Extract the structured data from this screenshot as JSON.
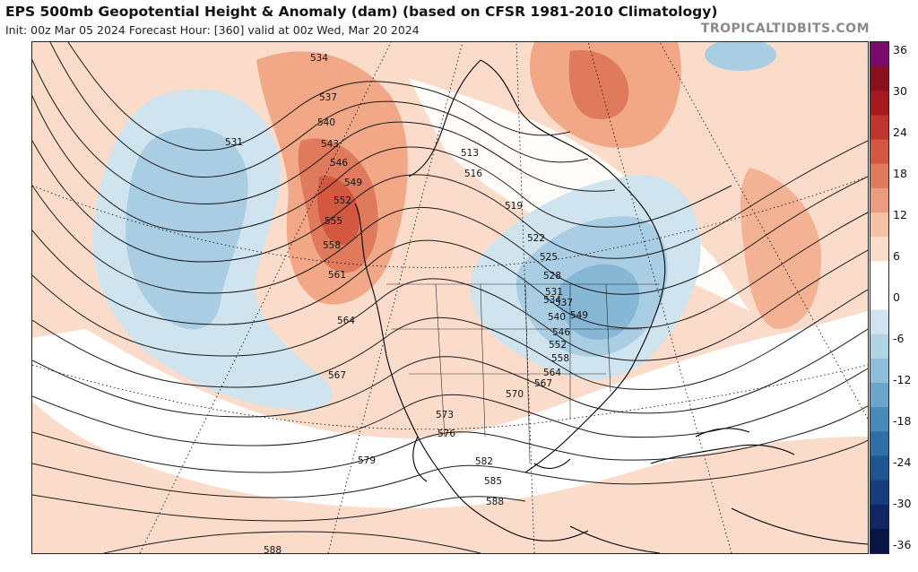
{
  "header": {
    "title": "EPS 500mb Geopotential Height & Anomaly (dam) (based on CFSR 1981-2010 Climatology)",
    "subtitle": "Init: 00z Mar 05 2024   Forecast Hour: [360]   valid at 00z Wed, Mar 20 2024",
    "brand": "TROPICALTIDBITS.COM"
  },
  "colorbar": {
    "ticks": [
      "36",
      "30",
      "24",
      "18",
      "12",
      "6",
      "0",
      "-6",
      "-12",
      "-18",
      "-24",
      "-30",
      "-36"
    ],
    "colors": [
      "#7a0a6e",
      "#8c0f1e",
      "#a61a1f",
      "#c0362e",
      "#d4573f",
      "#e07a5c",
      "#eb9c80",
      "#f5c1a6",
      "#fbdccb",
      "#ffffff",
      "#ffffff",
      "#cfe4ee",
      "#b1d3e6",
      "#8fbedb",
      "#6aa5cc",
      "#4a8abb",
      "#2f6fa7",
      "#1e5593",
      "#173d7d",
      "#102764",
      "#0a1446"
    ]
  },
  "contours": {
    "labels": [
      "531",
      "534",
      "537",
      "540",
      "543",
      "546",
      "549",
      "552",
      "555",
      "558",
      "561",
      "564",
      "567",
      "570",
      "573",
      "576",
      "579",
      "582",
      "585",
      "588",
      "513",
      "516",
      "519",
      "522",
      "525",
      "528",
      "531",
      "534",
      "537",
      "540",
      "546",
      "549",
      "552",
      "558",
      "564",
      "567",
      "588"
    ]
  },
  "colors": {
    "warm_light": "#fbdccb",
    "warm_mid": "#f2a887",
    "warm_strong": "#e07a5c",
    "warm_peak": "#d4573f",
    "cold_light": "#cfe4ee",
    "cold_mid": "#a9cde2",
    "cold_strong": "#86b8d6",
    "contour": "#1a1a1a"
  }
}
